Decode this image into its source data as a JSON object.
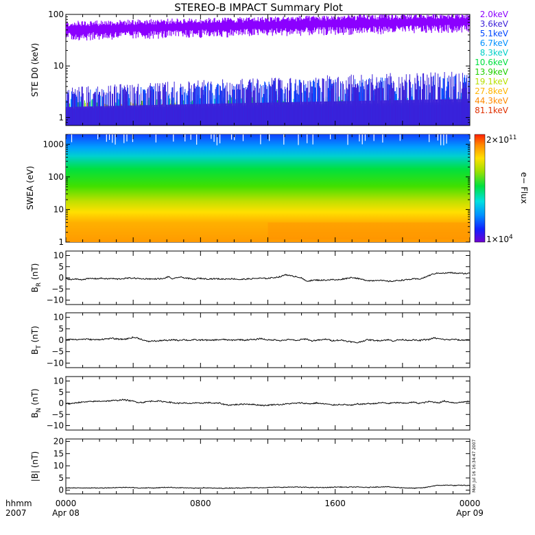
{
  "chart_data": {
    "title": "STEREO-B IMPACT Summary Plot",
    "time_axis": {
      "label_top": "hhmm",
      "label_bottom": "2007",
      "ticks": [
        {
          "hours": 0,
          "label": "0000",
          "sub": "Apr 08"
        },
        {
          "hours": 8,
          "label": "0800",
          "sub": ""
        },
        {
          "hours": 16,
          "label": "1600",
          "sub": ""
        },
        {
          "hours": 24,
          "label": "0000",
          "sub": "Apr 09"
        }
      ],
      "range_hours": [
        0,
        24
      ]
    },
    "stamp": "Mon Jul 16 16:34:47 2007",
    "panels": [
      {
        "id": "ste",
        "type": "line",
        "ylabel": "STE D0 (keV)",
        "yscale": "log",
        "ylim": [
          0.7,
          100
        ],
        "yticks": [
          {
            "v": 1,
            "l": "1"
          },
          {
            "v": 10,
            "l": "10"
          },
          {
            "v": 100,
            "l": "100"
          }
        ],
        "series": [
          {
            "name": "2.0keV",
            "color": "#8b00ff",
            "level": [
              55,
              80
            ],
            "spread": 20
          },
          {
            "name": "3.6keV",
            "color": "#3b1fd9",
            "level": [
              1.6,
              2.3
            ],
            "spread": 1.2
          },
          {
            "name": "5.1keV",
            "color": "#0047ff",
            "level": [
              1.5,
              2.0
            ],
            "spread": 1.0
          },
          {
            "name": "6.7keV",
            "color": "#0090ff",
            "level": [
              1.4,
              1.8
            ],
            "spread": 0.6
          },
          {
            "name": "8.3keV",
            "color": "#00d0c8",
            "level": [
              1.3,
              1.6
            ],
            "spread": 0.5
          },
          {
            "name": "10.6keV",
            "color": "#00e040",
            "level": [
              1.3,
              1.5
            ],
            "spread": 0.5
          },
          {
            "name": "13.9keV",
            "color": "#20d000",
            "level": [
              1.3,
              1.5
            ],
            "spread": 0.4
          },
          {
            "name": "19.1keV",
            "color": "#b8e000",
            "level": [
              1.3,
              1.5
            ],
            "spread": 0.4
          },
          {
            "name": "27.8keV",
            "color": "#ffb400",
            "level": [
              1.3,
              1.4
            ],
            "spread": 0.3
          },
          {
            "name": "44.3keV",
            "color": "#ff8a00",
            "level": [
              1.3,
              1.4
            ],
            "spread": 0.3
          },
          {
            "name": "81.1keV",
            "color": "#e03000",
            "level": [
              1.3,
              1.4
            ],
            "spread": 0.3
          }
        ]
      },
      {
        "id": "swea",
        "type": "heatmap",
        "ylabel": "SWEA (eV)",
        "yscale": "log",
        "ylim": [
          1,
          2000
        ],
        "yticks": [
          {
            "v": 1,
            "l": "1"
          },
          {
            "v": 10,
            "l": "10"
          },
          {
            "v": 100,
            "l": "100"
          },
          {
            "v": 1000,
            "l": "1000"
          }
        ],
        "colorbar": {
          "label": "e− Flux",
          "max_mant": "2×10",
          "max_exp": "11",
          "min_mant": "1×10",
          "min_exp": "4",
          "range": [
            10000,
            200000000000
          ]
        }
      },
      {
        "id": "br",
        "type": "line",
        "ylabel": "B",
        "sub": "R",
        "unit": "(nT)",
        "ylim": [
          -12,
          12
        ],
        "yticks": [
          {
            "v": -10,
            "l": "−10"
          },
          {
            "v": -5,
            "l": "−5"
          },
          {
            "v": 0,
            "l": "0"
          },
          {
            "v": 5,
            "l": "5"
          },
          {
            "v": 10,
            "l": "10"
          }
        ],
        "y": [
          -0.5,
          -0.7,
          -0.6,
          -0.8,
          -0.5,
          -0.3,
          -0.4,
          -0.2,
          -0.5,
          -0.3,
          -0.6,
          -0.4,
          -0.2,
          -0.1,
          -0.3,
          -0.5,
          -0.4,
          -0.6,
          -0.4,
          -0.5,
          0.5,
          -0.6,
          0.3,
          0.1,
          -0.3,
          -0.7,
          -0.2,
          -0.4,
          -0.5,
          -0.4,
          -0.5,
          -0.6,
          -0.4,
          -0.5,
          -0.8,
          -0.6,
          -0.5,
          -0.3,
          -0.2,
          -0.3,
          -0.1,
          0.2,
          0.5,
          1.5,
          0.8,
          0.6,
          0.0,
          -1.5,
          -1.2,
          -1.0,
          -1.1,
          -1.0,
          -0.8,
          -1.0,
          -0.6,
          -0.2,
          0.2,
          -0.3,
          -0.8,
          -1.2,
          -1.3,
          -1.0,
          -1.3,
          -1.6,
          -1.5,
          -1.2,
          -1.0,
          -0.8,
          -0.5,
          -0.6,
          0.0,
          1.0,
          1.8,
          2.2,
          2.0,
          2.3,
          2.1,
          2.0,
          1.9,
          2.0
        ]
      },
      {
        "id": "bt",
        "type": "line",
        "ylabel": "B",
        "sub": "T",
        "unit": "(nT)",
        "ylim": [
          -12,
          12
        ],
        "yticks": [
          {
            "v": -10,
            "l": "−10"
          },
          {
            "v": -5,
            "l": "−5"
          },
          {
            "v": 0,
            "l": "0"
          },
          {
            "v": 5,
            "l": "5"
          },
          {
            "v": 10,
            "l": "10"
          }
        ],
        "y": [
          0.3,
          0.6,
          0.2,
          0.4,
          0.5,
          0.3,
          0.2,
          0.4,
          0.6,
          0.8,
          0.5,
          0.4,
          0.6,
          1.2,
          1.0,
          0.2,
          -0.6,
          -0.3,
          -0.4,
          0.0,
          -0.2,
          0.3,
          -0.1,
          0.3,
          -0.1,
          0.2,
          0.0,
          0.2,
          -0.1,
          0.1,
          0.2,
          0.3,
          0.0,
          0.1,
          0.3,
          0.0,
          0.3,
          0.2,
          0.8,
          0.3,
          0.0,
          0.2,
          -0.2,
          0.1,
          0.4,
          -0.3,
          0.3,
          0.6,
          -0.3,
          0.0,
          0.1,
          0.5,
          -0.2,
          0.0,
          0.0,
          -0.4,
          -0.8,
          -1.1,
          -0.4,
          0.2,
          0.0,
          -0.2,
          0.0,
          0.2,
          -0.3,
          0.1,
          0.2,
          0.0,
          0.1,
          -0.2,
          0.2,
          0.3,
          1.0,
          0.6,
          0.3,
          0.2,
          0.4,
          0.0,
          0.1,
          0.3
        ]
      },
      {
        "id": "bn",
        "type": "line",
        "ylabel": "B",
        "sub": "N",
        "unit": "(nT)",
        "ylim": [
          -12,
          12
        ],
        "yticks": [
          {
            "v": -10,
            "l": "−10"
          },
          {
            "v": -5,
            "l": "−5"
          },
          {
            "v": 0,
            "l": "0"
          },
          {
            "v": 5,
            "l": "5"
          },
          {
            "v": 10,
            "l": "10"
          }
        ],
        "y": [
          0.0,
          -0.3,
          0.3,
          0.5,
          0.6,
          0.8,
          0.9,
          1.0,
          1.0,
          1.2,
          1.3,
          1.6,
          1.4,
          1.0,
          0.5,
          0.4,
          0.8,
          1.0,
          1.0,
          0.8,
          0.6,
          0.2,
          0.0,
          0.2,
          -0.2,
          0.2,
          0.0,
          0.2,
          0.3,
          0.0,
          0.1,
          -0.5,
          -0.8,
          -0.6,
          -0.5,
          -0.3,
          -0.4,
          -0.6,
          -0.8,
          -1.0,
          -0.7,
          -0.5,
          -0.6,
          -0.3,
          -0.1,
          0.0,
          0.2,
          -0.1,
          -0.2,
          0.2,
          -0.2,
          -0.3,
          -0.8,
          -0.6,
          -0.5,
          -0.7,
          -0.9,
          -0.3,
          -0.4,
          -0.1,
          -0.2,
          0.1,
          0.3,
          -0.1,
          0.2,
          0.3,
          0.0,
          0.2,
          0.5,
          0.0,
          0.3,
          0.8,
          0.5,
          0.3,
          1.0,
          0.6,
          0.2,
          0.4,
          0.7,
          0.8
        ]
      },
      {
        "id": "bm",
        "type": "line",
        "ylabel": "|B| (nT)",
        "ylim": [
          -1.5,
          21
        ],
        "yticks": [
          {
            "v": 0,
            "l": "0"
          },
          {
            "v": 5,
            "l": "5"
          },
          {
            "v": 10,
            "l": "10"
          },
          {
            "v": 15,
            "l": "15"
          },
          {
            "v": 20,
            "l": "20"
          }
        ],
        "y": [
          0.9,
          1.0,
          0.9,
          0.9,
          1.0,
          0.9,
          0.9,
          0.9,
          1.0,
          1.0,
          1.1,
          1.1,
          1.2,
          1.1,
          0.9,
          0.9,
          1.0,
          0.9,
          1.0,
          1.1,
          1.2,
          1.1,
          1.0,
          1.0,
          0.9,
          0.8,
          0.9,
          1.0,
          0.9,
          0.8,
          0.8,
          0.8,
          0.9,
          0.9,
          0.9,
          1.0,
          1.0,
          1.0,
          1.0,
          1.1,
          1.1,
          1.2,
          1.2,
          1.2,
          1.3,
          1.3,
          1.2,
          1.2,
          1.1,
          1.1,
          1.1,
          1.1,
          1.2,
          1.3,
          1.3,
          1.2,
          1.3,
          1.3,
          1.2,
          1.1,
          1.3,
          1.3,
          1.4,
          1.4,
          1.2,
          1.1,
          1.0,
          0.9,
          0.8,
          0.9,
          1.0,
          1.4,
          1.8,
          2.0,
          2.0,
          2.1,
          1.9,
          2.0,
          2.0,
          1.9
        ]
      }
    ]
  }
}
